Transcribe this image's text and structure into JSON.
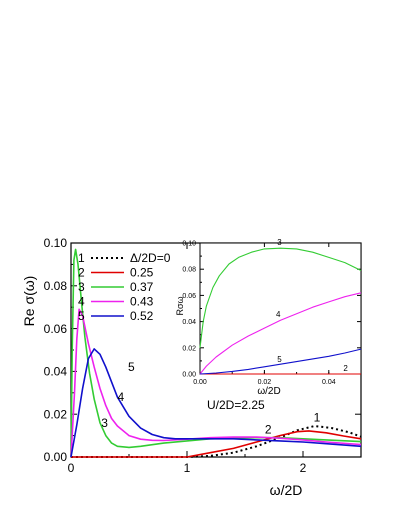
{
  "chart_data": [
    {
      "type": "line",
      "xlabel": "ω/2D",
      "ylabel": "Re σ(ω)",
      "xlim": [
        0,
        2.5
      ],
      "ylim": [
        0,
        0.1
      ],
      "xticks": [
        "0",
        "1",
        "2"
      ],
      "yticks": [
        "0.00",
        "0.02",
        "0.04",
        "0.06",
        "0.08",
        "0.10"
      ],
      "annotation": "U/2D=2.25",
      "legend_position": "top-left",
      "legend": {
        "header": "Δ/2D=0",
        "entries": [
          {
            "index": "1",
            "value": "Δ/2D=0"
          },
          {
            "index": "2",
            "value": "0.25"
          },
          {
            "index": "3",
            "value": "0.37"
          },
          {
            "index": "4",
            "value": "0.43"
          },
          {
            "index": "5",
            "value": "0.52"
          }
        ]
      },
      "series": [
        {
          "index": "1",
          "color": "#000000",
          "dashed": true,
          "x": [
            0,
            1.0,
            1.2,
            1.4,
            1.6,
            1.8,
            1.95,
            2.1,
            2.25,
            2.4,
            2.5
          ],
          "y": [
            0,
            0,
            0.0005,
            0.002,
            0.005,
            0.009,
            0.0125,
            0.0145,
            0.0135,
            0.0115,
            0.0095
          ]
        },
        {
          "index": "2",
          "color": "#e00000",
          "dashed": false,
          "x": [
            0,
            1.0,
            1.2,
            1.4,
            1.6,
            1.8,
            1.95,
            2.05,
            2.2,
            2.35,
            2.5
          ],
          "y": [
            0,
            0,
            0.002,
            0.004,
            0.007,
            0.01,
            0.0118,
            0.0122,
            0.0113,
            0.0098,
            0.0085
          ]
        },
        {
          "index": "3",
          "color": "#33cc33",
          "dashed": false,
          "x": [
            0,
            0.01,
            0.025,
            0.04,
            0.06,
            0.09,
            0.12,
            0.16,
            0.2,
            0.25,
            0.3,
            0.35,
            0.4,
            0.5,
            0.6,
            0.8,
            1.0,
            1.2,
            1.4,
            1.6,
            1.8,
            2.0,
            2.2,
            2.5
          ],
          "y": [
            0,
            0.05,
            0.092,
            0.097,
            0.09,
            0.073,
            0.056,
            0.039,
            0.027,
            0.016,
            0.01,
            0.0065,
            0.005,
            0.0045,
            0.005,
            0.0065,
            0.0075,
            0.0085,
            0.0088,
            0.009,
            0.009,
            0.0085,
            0.008,
            0.0072
          ]
        },
        {
          "index": "4",
          "color": "#ee22ee",
          "dashed": false,
          "x": [
            0,
            0.03,
            0.05,
            0.07,
            0.1,
            0.15,
            0.2,
            0.25,
            0.3,
            0.35,
            0.4,
            0.5,
            0.6,
            0.7,
            0.8,
            1.0,
            1.2,
            1.4,
            1.6,
            1.8,
            2.0,
            2.2,
            2.5
          ],
          "y": [
            0,
            0.03,
            0.055,
            0.069,
            0.066,
            0.053,
            0.042,
            0.032,
            0.024,
            0.018,
            0.0145,
            0.01,
            0.0083,
            0.0078,
            0.0077,
            0.0083,
            0.009,
            0.0093,
            0.0093,
            0.0088,
            0.008,
            0.007,
            0.0058
          ]
        },
        {
          "index": "5",
          "color": "#1010cc",
          "dashed": false,
          "x": [
            0,
            0.05,
            0.1,
            0.15,
            0.2,
            0.25,
            0.3,
            0.35,
            0.4,
            0.5,
            0.6,
            0.7,
            0.8,
            0.9,
            1.0,
            1.2,
            1.4,
            1.6,
            1.8,
            2.0,
            2.2,
            2.5
          ],
          "y": [
            0,
            0.015,
            0.032,
            0.046,
            0.0505,
            0.048,
            0.042,
            0.035,
            0.028,
            0.019,
            0.0135,
            0.0105,
            0.009,
            0.0085,
            0.0085,
            0.0085,
            0.0085,
            0.008,
            0.0075,
            0.007,
            0.0062,
            0.005
          ]
        }
      ],
      "curve_labels": [
        {
          "text": "1",
          "x": 2.12,
          "y": 0.0165
        },
        {
          "text": "2",
          "x": 1.7,
          "y": 0.0109
        },
        {
          "text": "3",
          "x": 0.29,
          "y": 0.0141
        },
        {
          "text": "4",
          "x": 0.43,
          "y": 0.0261
        },
        {
          "text": "5",
          "x": 0.52,
          "y": 0.0401
        }
      ]
    },
    {
      "type": "line",
      "name": "inset",
      "xlabel": "ω/2D",
      "ylabel": "Rσω",
      "xlim": [
        0,
        0.05
      ],
      "ylim": [
        0,
        0.1
      ],
      "xticks": [
        "0.00",
        "0.02",
        "0.04"
      ],
      "yticks": [
        "0.00",
        "0.02",
        "0.04",
        "0.06",
        "0.08",
        "0.10"
      ],
      "series": [
        {
          "index": "2",
          "color": "#e00000",
          "x": [
            0,
            0.05
          ],
          "y": [
            0,
            0
          ]
        },
        {
          "index": "3",
          "color": "#33cc33",
          "x": [
            0,
            0.001,
            0.002,
            0.004,
            0.006,
            0.009,
            0.012,
            0.016,
            0.02,
            0.025,
            0.03,
            0.035,
            0.04,
            0.045,
            0.05
          ],
          "y": [
            0.02,
            0.04,
            0.052,
            0.066,
            0.075,
            0.084,
            0.089,
            0.093,
            0.0955,
            0.096,
            0.0955,
            0.093,
            0.089,
            0.085,
            0.079
          ]
        },
        {
          "index": "4",
          "color": "#ee22ee",
          "x": [
            0,
            0.002,
            0.005,
            0.01,
            0.015,
            0.02,
            0.025,
            0.03,
            0.035,
            0.04,
            0.045,
            0.05
          ],
          "y": [
            0,
            0.006,
            0.013,
            0.022,
            0.029,
            0.035,
            0.041,
            0.046,
            0.051,
            0.055,
            0.059,
            0.062
          ]
        },
        {
          "index": "5",
          "color": "#1010cc",
          "x": [
            0,
            0.005,
            0.01,
            0.015,
            0.02,
            0.025,
            0.03,
            0.035,
            0.04,
            0.045,
            0.05
          ],
          "y": [
            0,
            0.0008,
            0.002,
            0.0035,
            0.0055,
            0.0075,
            0.0095,
            0.0115,
            0.0135,
            0.016,
            0.019
          ]
        }
      ],
      "curve_labels": [
        {
          "text": "3",
          "x": 0.0247,
          "y": 0.0983
        },
        {
          "text": "4",
          "x": 0.0243,
          "y": 0.0434
        },
        {
          "text": "5",
          "x": 0.0247,
          "y": 0.0091
        },
        {
          "text": "2",
          "x": 0.0452,
          "y": 0.0022
        }
      ]
    }
  ]
}
